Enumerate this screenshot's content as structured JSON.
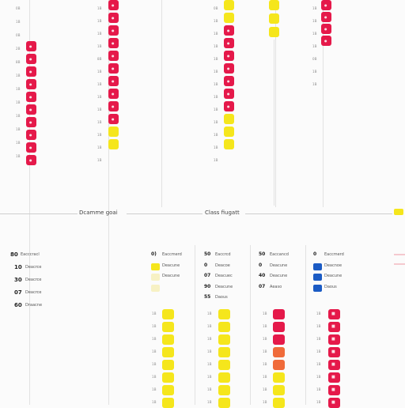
{
  "colors": {
    "red": "#e5194a",
    "yellow": "#f5e61c",
    "orange": "#f06b3a",
    "blue": "#1b5bc4",
    "pale_yellow": "#f7f1c4",
    "pale_red": "#f5c9cf",
    "grid": "#e2e2e2",
    "divider": "#cfcfcf"
  },
  "sections": {
    "left_title": "Dcamme goai",
    "right_title": "Class fiugatt"
  },
  "legend_left": {
    "items": [
      {
        "num": "80",
        "label": "Eacccracl",
        "icon": "none"
      },
      {
        "num": "10",
        "label": "Deacrce",
        "icon": "none"
      },
      {
        "num": "30",
        "label": "Deacrce",
        "icon": "none"
      },
      {
        "num": "07",
        "label": "Deacrce",
        "icon": "none"
      },
      {
        "num": "60",
        "label": "Draacne",
        "icon": "none"
      }
    ]
  },
  "legends_right": [
    {
      "items": [
        {
          "num": "0)",
          "label": "Eaccmerd",
          "icon": "yellow"
        },
        {
          "num": "",
          "label": "Deacune",
          "icon": "yellow"
        },
        {
          "num": "",
          "label": "Deacune",
          "icon": "pale_yellow"
        },
        {
          "num": "",
          "label": "",
          "icon": "pale_yellow"
        }
      ]
    },
    {
      "items": [
        {
          "num": "50",
          "label": "Eaccrcd",
          "icon": "none"
        },
        {
          "num": "0",
          "label": "Deacoe",
          "icon": "none"
        },
        {
          "num": "07",
          "label": "Deacuec",
          "icon": "none"
        },
        {
          "num": "90",
          "label": "Deacune",
          "icon": "none"
        },
        {
          "num": "55",
          "label": "Daous",
          "icon": "none"
        }
      ]
    },
    {
      "items": [
        {
          "num": "50",
          "label": "Eaccancd",
          "icon": "blue"
        },
        {
          "num": "0",
          "label": "Deacune",
          "icon": "blue"
        },
        {
          "num": "40",
          "label": "Deacune",
          "icon": "none"
        },
        {
          "num": "07",
          "label": "Aeaso",
          "icon": "none"
        }
      ]
    },
    {
      "items": [
        {
          "num": "0",
          "label": "Eaccmerd",
          "icon": "blue"
        },
        {
          "num": "",
          "label": "Deacnoe",
          "icon": "blue"
        },
        {
          "num": "",
          "label": "Deacune",
          "icon": "blue"
        },
        {
          "num": "",
          "label": "Daous",
          "icon": "blue"
        }
      ]
    }
  ],
  "top_columns": [
    {
      "axis": [
        "0B",
        "1B",
        "0B",
        "2B",
        "8B",
        "1B",
        "1B",
        "1B",
        "1B",
        "1B",
        "1B",
        "1B"
      ],
      "cells": [
        "none",
        "none",
        "red",
        "red",
        "red",
        "red",
        "red",
        "red",
        "red",
        "red",
        "red",
        "red"
      ]
    },
    {
      "axis": [
        "1B",
        "1B",
        "1B",
        "1B",
        "8B",
        "1B",
        "1B",
        "1B",
        "1B",
        "1B",
        "1B",
        "1B",
        "1B"
      ],
      "cells": [
        "red",
        "red",
        "red",
        "red",
        "red",
        "red",
        "red",
        "red",
        "red",
        "red",
        "yellow",
        "yellow"
      ]
    },
    {
      "axis": [
        "0B",
        "1B",
        "1B",
        "1B",
        "1B",
        "1B",
        "1B",
        "1B",
        "1B",
        "1B",
        "1B",
        "1B",
        "1B"
      ],
      "cells": [
        "yellow",
        "yellow",
        "red",
        "red",
        "red",
        "red",
        "red",
        "red",
        "red",
        "yellow",
        "yellow",
        "yellow"
      ]
    },
    {
      "axis": [],
      "cells": [
        "yellow",
        "yellow",
        "yellow"
      ]
    },
    {
      "axis": [
        "1B",
        "1B",
        "1B",
        "1B",
        "0B",
        "1B",
        "1B"
      ],
      "cells": [
        "red",
        "red",
        "red",
        "red"
      ]
    }
  ],
  "bottom_columns": [
    {
      "axis": [
        "1B",
        "1B",
        "1B",
        "1B",
        "1B",
        "1B",
        "1B",
        "1B"
      ],
      "cells": [
        "yellow",
        "yellow",
        "yellow",
        "yellow",
        "yellow",
        "yellow",
        "yellow",
        "yellow"
      ]
    },
    {
      "axis": [
        "1B",
        "1B",
        "1B",
        "1B",
        "1B",
        "1B",
        "1B",
        "1B"
      ],
      "cells": [
        "yellow",
        "yellow",
        "yellow",
        "yellow",
        "yellow",
        "yellow",
        "yellow",
        "yellow"
      ]
    },
    {
      "axis": [
        "1B",
        "1B",
        "1B",
        "1B",
        "1B",
        "1B",
        "1B",
        "1B"
      ],
      "cells": [
        "red",
        "red",
        "red",
        "orange",
        "orange",
        "yellow",
        "yellow",
        "yellow"
      ]
    },
    {
      "axis": [
        "1B",
        "1B",
        "1B",
        "1B",
        "1B",
        "1B",
        "1B",
        "1B"
      ],
      "cells": [
        "red",
        "red",
        "red",
        "red",
        "red",
        "red",
        "red",
        "red"
      ]
    }
  ]
}
